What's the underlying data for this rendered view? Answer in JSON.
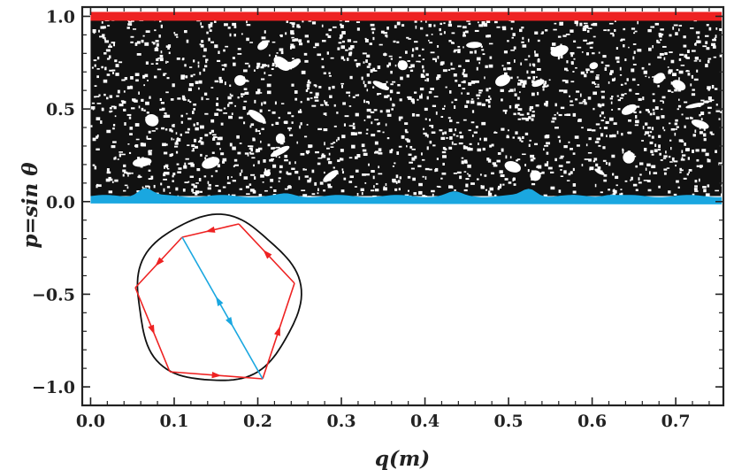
{
  "chart_data": {
    "type": "scatter",
    "xlabel": "q(m)",
    "ylabel": "p=sin θ",
    "xlim": [
      -0.01,
      0.757
    ],
    "ylim": [
      -1.1,
      1.05
    ],
    "x_ticks": [
      0.0,
      0.1,
      0.2,
      0.3,
      0.4,
      0.5,
      0.6,
      0.7
    ],
    "x_tick_labels": [
      "0.0",
      "0.1",
      "0.2",
      "0.3",
      "0.4",
      "0.5",
      "0.6",
      "0.7"
    ],
    "y_ticks": [
      -1.0,
      -0.5,
      0.0,
      0.5,
      1.0
    ],
    "y_tick_labels": [
      "−1.0",
      "−0.5",
      "0.0",
      "0.5",
      "1.0"
    ],
    "grid": false,
    "series": [
      {
        "color": "#111111",
        "description": "chaotic sea filling 0.02 < p < 1.0, 0 ≤ q ≤ 0.755",
        "q_range": [
          0.0,
          0.755
        ],
        "p_range": [
          0.03,
          0.99
        ]
      },
      {
        "color": "#ee2222",
        "description": "whispering-gallery orbit band",
        "q_range": [
          0.0,
          0.755
        ],
        "p": 1.0
      },
      {
        "color": "#1aa7e0",
        "description": "diameter-bouncing orbit band",
        "q_range": [
          0.0,
          0.755
        ],
        "p": 0.01,
        "bumps": [
          {
            "q": 0.065,
            "p": 0.065
          },
          {
            "q": 0.235,
            "p": 0.03
          },
          {
            "q": 0.435,
            "p": 0.04
          },
          {
            "q": 0.525,
            "p": 0.06
          },
          {
            "q": 0.62,
            "p": 0.03
          }
        ]
      }
    ],
    "inset": {
      "description": "billiard boundary with periodic orbits",
      "boundary_color": "#111111",
      "pentagon_orbit_color": "#ee2222",
      "diameter_orbit_color": "#1aa7e0"
    }
  }
}
